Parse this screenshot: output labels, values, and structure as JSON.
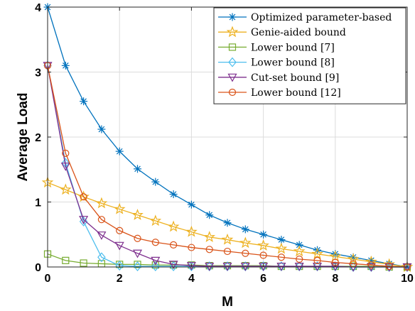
{
  "chart_data": {
    "type": "line",
    "xlabel": "M",
    "ylabel": "Average Load",
    "xlim": [
      0,
      10
    ],
    "ylim": [
      0,
      4
    ],
    "xticks": [
      0,
      2,
      4,
      6,
      8,
      10
    ],
    "yticks": [
      0,
      1,
      2,
      3,
      4
    ],
    "grid": true,
    "legend_position": "top-right",
    "x": [
      0,
      0.5,
      1,
      1.5,
      2,
      2.5,
      3,
      3.5,
      4,
      4.5,
      5,
      5.5,
      6,
      6.5,
      7,
      7.5,
      8,
      8.5,
      9,
      9.5,
      10
    ],
    "series": [
      {
        "name": "Optimized parameter-based",
        "color": "#0072BD",
        "marker": "asterisk",
        "values": [
          4.0,
          3.1,
          2.55,
          2.12,
          1.78,
          1.51,
          1.31,
          1.12,
          0.96,
          0.8,
          0.68,
          0.58,
          0.5,
          0.42,
          0.34,
          0.26,
          0.2,
          0.15,
          0.1,
          0.05,
          0.0
        ]
      },
      {
        "name": "Genie-aided bound",
        "color": "#EDB120",
        "marker": "pentagram",
        "values": [
          1.3,
          1.19,
          1.08,
          0.98,
          0.89,
          0.8,
          0.71,
          0.62,
          0.54,
          0.46,
          0.42,
          0.37,
          0.33,
          0.28,
          0.24,
          0.2,
          0.16,
          0.12,
          0.08,
          0.04,
          0.0
        ]
      },
      {
        "name": "Lower bound [7]",
        "color": "#77AC30",
        "marker": "square",
        "values": [
          0.2,
          0.1,
          0.06,
          0.05,
          0.04,
          0.04,
          0.03,
          0.03,
          0.03,
          0.02,
          0.02,
          0.02,
          0.02,
          0.01,
          0.01,
          0.01,
          0.01,
          0.01,
          0.01,
          0.0,
          0.0
        ]
      },
      {
        "name": "Lower bound [8]",
        "color": "#4DBEEE",
        "marker": "diamond",
        "values": [
          3.1,
          1.6,
          0.7,
          0.15,
          0.02,
          0.01,
          0.01,
          0.01,
          0.01,
          0.01,
          0.01,
          0.01,
          0.01,
          0.01,
          0.01,
          0.01,
          0.01,
          0.0,
          0.0,
          0.0,
          0.0
        ]
      },
      {
        "name": "Cut-set bound [9]",
        "color": "#7E2F8E",
        "marker": "triangle-down",
        "values": [
          3.1,
          1.55,
          0.73,
          0.49,
          0.33,
          0.21,
          0.1,
          0.04,
          0.02,
          0.01,
          0.01,
          0.01,
          0.01,
          0.01,
          0.01,
          0.01,
          0.01,
          0.0,
          0.0,
          0.0,
          0.0
        ]
      },
      {
        "name": "Lower bound [12]",
        "color": "#D95319",
        "marker": "circle",
        "values": [
          3.1,
          1.75,
          1.08,
          0.73,
          0.56,
          0.44,
          0.38,
          0.34,
          0.3,
          0.27,
          0.24,
          0.21,
          0.18,
          0.15,
          0.12,
          0.1,
          0.07,
          0.05,
          0.03,
          0.01,
          0.0
        ]
      }
    ]
  }
}
